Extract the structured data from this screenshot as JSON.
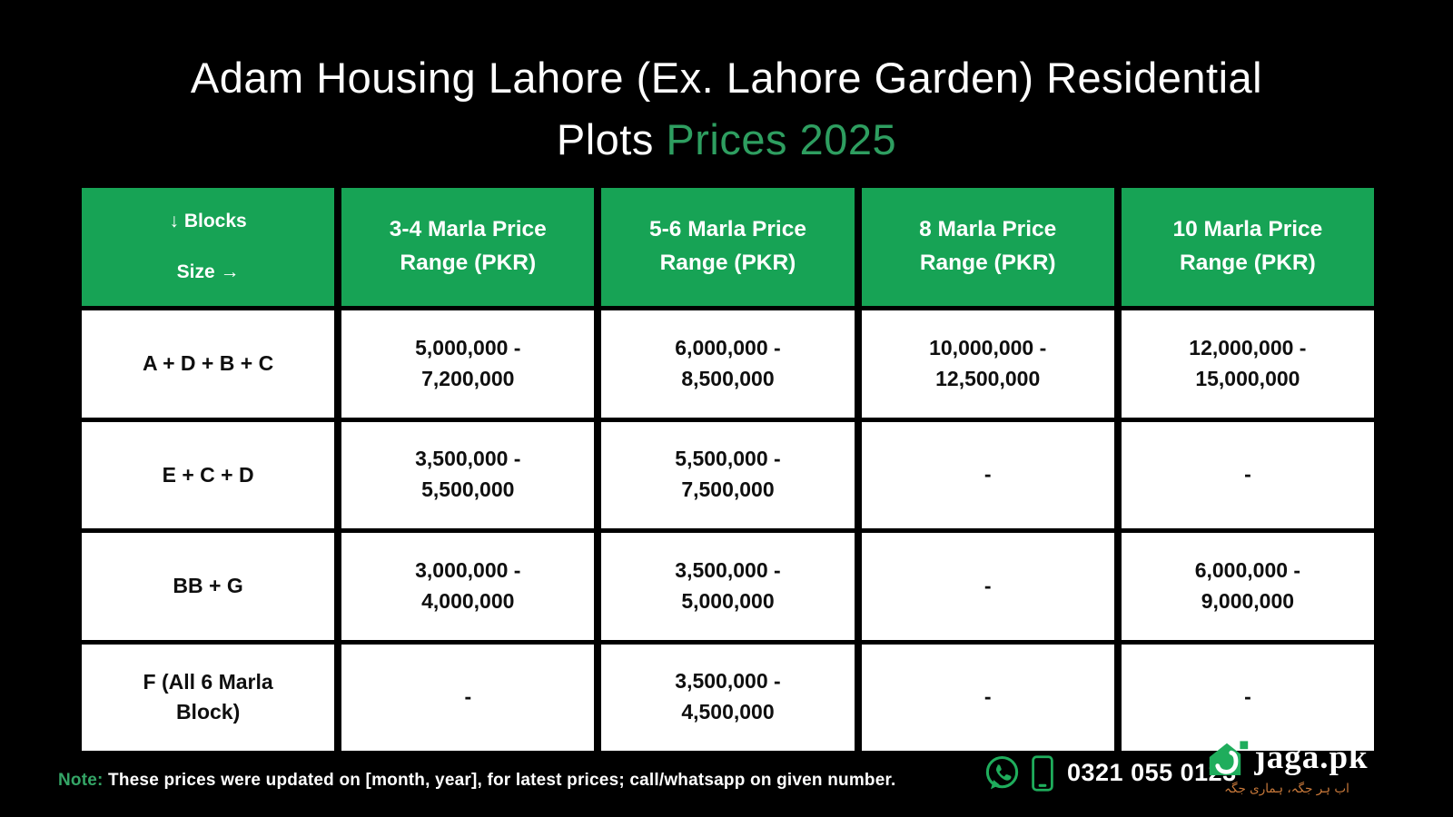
{
  "colors": {
    "background": "#000000",
    "table_header_green": "#17a355",
    "title_accent_green": "#2e9e60",
    "note_green": "#34a566",
    "tagline_orange": "#c9793a",
    "icon_green": "#1fad5c"
  },
  "title": {
    "line1": "Adam Housing Lahore (Ex. Lahore Garden) Residential",
    "line2_white": "Plots",
    "line2_accent": "Prices 2025"
  },
  "chart_data": {
    "type": "table",
    "title": "Adam Housing Lahore (Ex. Lahore Garden) Residential Plots Prices 2025",
    "corner": {
      "blocks_label": "↓ Blocks",
      "size_label": "Size →"
    },
    "columns": [
      "3-4 Marla Price Range (PKR)",
      "5-6 Marla Price Range (PKR)",
      "8 Marla Price Range (PKR)",
      "10 Marla Price Range (PKR)"
    ],
    "rows": [
      [
        "A + D + B + C",
        "5,000,000 - 7,200,000",
        "6,000,000 - 8,500,000",
        "10,000,000 - 12,500,000",
        "12,000,000 - 15,000,000"
      ],
      [
        "E + C + D",
        "3,500,000 - 5,500,000",
        "5,500,000 - 7,500,000",
        "-",
        "-"
      ],
      [
        "BB + G",
        "3,000,000 - 4,000,000",
        "3,500,000 - 5,000,000",
        "-",
        "6,000,000 - 9,000,000"
      ],
      [
        "F (All 6 Marla Block)",
        "-",
        "3,500,000 - 4,500,000",
        "-",
        "-"
      ]
    ]
  },
  "footer": {
    "note_label": "Note:",
    "note_text": "These prices were updated on [month, year], for latest prices; call/whatsapp on given number.",
    "phone_number": "0321 055 0123",
    "brand_name": "jaga.pk",
    "brand_tagline": "اب ہر جگہ، ہماری جگہ"
  }
}
